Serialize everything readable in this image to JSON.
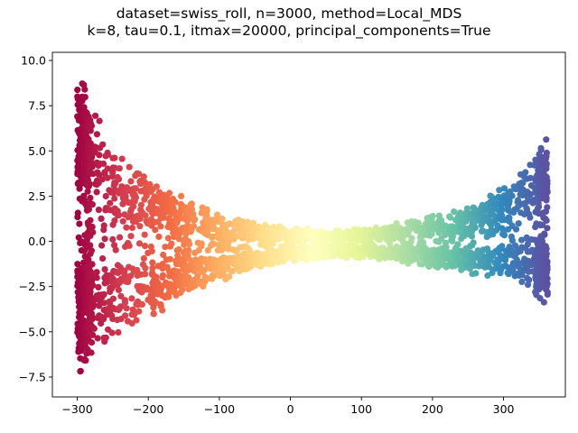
{
  "chart_data": {
    "type": "scatter",
    "title_lines": [
      "dataset=swiss_roll, n=3000, method=Local_MDS",
      "k=8, tau=0.1, itmax=20000, principal_components=True"
    ],
    "xlabel": "",
    "ylabel": "",
    "xlim": [
      -335,
      387
    ],
    "ylim": [
      -8.6,
      10.45
    ],
    "xticks": [
      -300,
      -200,
      -100,
      0,
      100,
      200,
      300
    ],
    "xtick_labels": [
      "−300",
      "−200",
      "−100",
      "0",
      "100",
      "200",
      "300"
    ],
    "yticks": [
      -7.5,
      -5.0,
      -2.5,
      0.0,
      2.5,
      5.0,
      7.5,
      10.0
    ],
    "ytick_labels": [
      "−7.5",
      "−5.0",
      "−2.5",
      "0.0",
      "2.5",
      "5.0",
      "7.5",
      "10.0"
    ],
    "grid": false,
    "legend": "none",
    "colormap": "Spectral",
    "color_stops": [
      "#9e0142",
      "#d53e4f",
      "#f46d43",
      "#fdae61",
      "#fee08b",
      "#ffffbf",
      "#e6f598",
      "#abdda4",
      "#66c2a5",
      "#3288bd",
      "#5e4fa2"
    ],
    "color_range_x": [
      -300,
      365
    ],
    "point_color_encodes": "x position",
    "n_points": 3000,
    "shape_envelope": {
      "x": [
        -300,
        -290,
        -250,
        -200,
        -150,
        -100,
        -50,
        0,
        50,
        100,
        150,
        200,
        250,
        300,
        320,
        340,
        355,
        362
      ],
      "y_top": [
        9.4,
        8.7,
        5.2,
        3.9,
        2.4,
        1.5,
        1.0,
        0.8,
        0.6,
        0.7,
        1.0,
        1.4,
        1.9,
        3.0,
        3.7,
        4.4,
        5.5,
        5.7
      ],
      "y_bottom": [
        -7.7,
        -6.8,
        -5.3,
        -4.5,
        -2.8,
        -2.3,
        -1.6,
        -1.1,
        -1.0,
        -0.9,
        -1.1,
        -1.5,
        -1.8,
        -2.1,
        -2.5,
        -2.8,
        -3.3,
        -3.7
      ]
    }
  }
}
